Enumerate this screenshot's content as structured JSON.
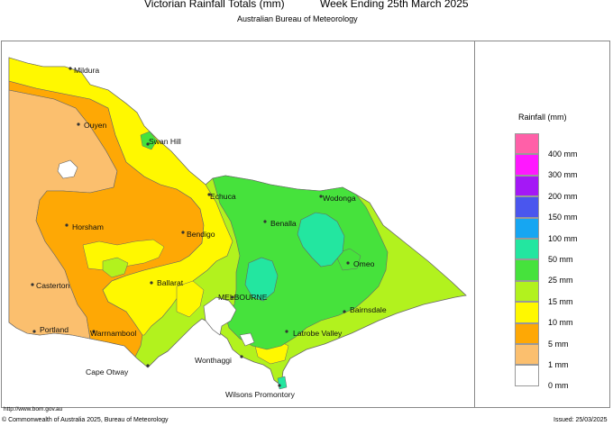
{
  "header": {
    "title": "Victorian Rainfall Totals (mm)",
    "period": "Week Ending 25th March 2025",
    "agency": "Australian Bureau of Meteorology"
  },
  "legend": {
    "title": "Rainfall (mm)",
    "items": [
      {
        "label": "400 mm",
        "color": "#ff60a8"
      },
      {
        "label": "300 mm",
        "color": "#ff18ff"
      },
      {
        "label": "200 mm",
        "color": "#a418f6"
      },
      {
        "label": "150 mm",
        "color": "#4a56ee"
      },
      {
        "label": "100 mm",
        "color": "#16a6f2"
      },
      {
        "label": "50 mm",
        "color": "#23e6a0"
      },
      {
        "label": "25 mm",
        "color": "#46e23c"
      },
      {
        "label": "15 mm",
        "color": "#b2f21e"
      },
      {
        "label": "10 mm",
        "color": "#fff800"
      },
      {
        "label": "5 mm",
        "color": "#fea805"
      },
      {
        "label": "1 mm",
        "color": "#fbbf6e"
      },
      {
        "label": "0 mm",
        "color": "#ffffff"
      }
    ]
  },
  "towns": [
    {
      "name": "Mildura"
    },
    {
      "name": "Ouyen"
    },
    {
      "name": "Swan Hill"
    },
    {
      "name": "Echuca"
    },
    {
      "name": "Wodonga"
    },
    {
      "name": "Horsham"
    },
    {
      "name": "Bendigo"
    },
    {
      "name": "Benalla"
    },
    {
      "name": "Omeo"
    },
    {
      "name": "Ballarat"
    },
    {
      "name": "Casterton"
    },
    {
      "name": "MELBOURNE"
    },
    {
      "name": "Bairnsdale"
    },
    {
      "name": "Portland"
    },
    {
      "name": "Warrnambool"
    },
    {
      "name": "Latrobe Valley"
    },
    {
      "name": "Wonthaggi"
    },
    {
      "name": "Cape Otway"
    },
    {
      "name": "Wilsons Promontory"
    }
  ],
  "footer": {
    "url": "http://www.bom.gov.au",
    "copyright": "© Commonwealth of Australia 2025, Bureau of Meteorology",
    "issued": "Issued: 25/03/2025"
  }
}
